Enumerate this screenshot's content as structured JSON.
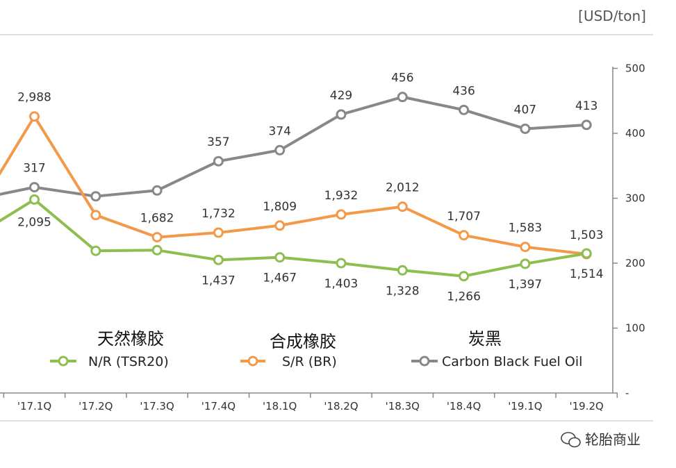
{
  "unit_label": "[USD/ton]",
  "watermark": "轮胎商业",
  "chart_data": {
    "type": "line",
    "categories": [
      "'17.1Q",
      "'17.2Q",
      "'17.3Q",
      "'17.4Q",
      "'18.1Q",
      "'18.2Q",
      "'18.3Q",
      "'18.4Q",
      "'19.1Q",
      "'19.2Q"
    ],
    "y_right_ticks": [
      "500",
      "400",
      "300",
      "200",
      "100",
      "-"
    ],
    "y_right_range": [
      0,
      500
    ],
    "series": [
      {
        "name": "N/R (TSR20)",
        "legend_title": "天然橡胶",
        "color": "#8cbf4f",
        "plot_values": [
          298,
          219,
          220,
          205,
          209,
          200,
          189,
          180,
          199,
          215
        ],
        "labels": [
          "2,095",
          "",
          "",
          "1,437",
          "1,467",
          "1,403",
          "1,328",
          "1,266",
          "1,397",
          "1,514"
        ],
        "left_edge_value": 262
      },
      {
        "name": "S/R (BR)",
        "legend_title": "合成橡胶",
        "color": "#f39a4a",
        "plot_values": [
          426,
          274,
          240,
          247,
          258,
          275,
          287,
          243,
          225,
          214
        ],
        "labels": [
          "2,988",
          "",
          "1,682",
          "1,732",
          "1,809",
          "1,932",
          "2,012",
          "1,707",
          "1,583",
          "1,503"
        ],
        "left_edge_value": 330
      },
      {
        "name": "Carbon Black Fuel Oil",
        "legend_title": "炭黑",
        "color": "#888888",
        "plot_values": [
          317,
          303,
          312,
          357,
          374,
          429,
          456,
          436,
          407,
          413
        ],
        "labels": [
          "317",
          "",
          "",
          "357",
          "374",
          "429",
          "456",
          "436",
          "407",
          "413"
        ],
        "left_edge_value": 305
      }
    ]
  }
}
